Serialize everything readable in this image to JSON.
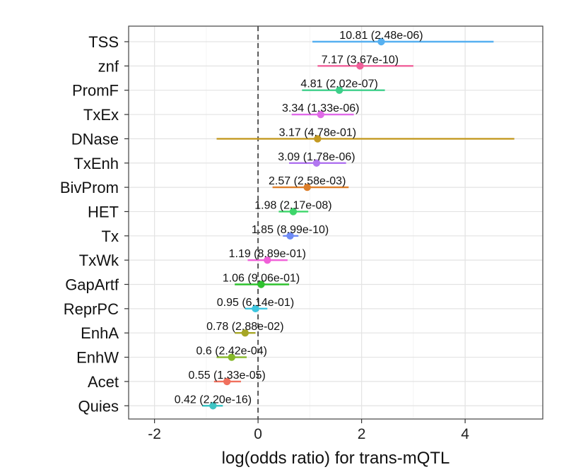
{
  "chart_data": {
    "type": "forest",
    "xlabel": "log(odds ratio) for trans-mQTL",
    "ylabel": "",
    "xlim": [
      -2.5,
      5.5
    ],
    "xticks": [
      -2,
      0,
      2,
      4
    ],
    "xtick_labels": [
      "-2",
      "0",
      "2",
      "4"
    ],
    "reference_line_x": 0,
    "grid": true,
    "rows": [
      {
        "category": "TSS",
        "estimate": 2.38,
        "lower": 1.05,
        "upper": 4.55,
        "label": "10.81 (2.48e-06)",
        "color": "#56b0f0"
      },
      {
        "category": "znf",
        "estimate": 1.97,
        "lower": 1.15,
        "upper": 3.0,
        "label": "7.17 (3.67e-10)",
        "color": "#f0609a"
      },
      {
        "category": "PromF",
        "estimate": 1.57,
        "lower": 0.85,
        "upper": 2.45,
        "label": "4.81 (2.02e-07)",
        "color": "#3dcf8a"
      },
      {
        "category": "TxEx",
        "estimate": 1.21,
        "lower": 0.65,
        "upper": 1.85,
        "label": "3.34 (1.33e-06)",
        "color": "#e06ae8"
      },
      {
        "category": "DNase",
        "estimate": 1.15,
        "lower": -0.8,
        "upper": 4.95,
        "label": "3.17 (4.78e-01)",
        "color": "#c49a22"
      },
      {
        "category": "TxEnh",
        "estimate": 1.13,
        "lower": 0.6,
        "upper": 1.7,
        "label": "3.09 (1.78e-06)",
        "color": "#b176f0"
      },
      {
        "category": "BivProm",
        "estimate": 0.95,
        "lower": 0.28,
        "upper": 1.75,
        "label": "2.57 (2.58e-03)",
        "color": "#dc7e2a"
      },
      {
        "category": "HET",
        "estimate": 0.68,
        "lower": 0.4,
        "upper": 0.97,
        "label": "1.98 (2.17e-08)",
        "color": "#3dd66a"
      },
      {
        "category": "Tx",
        "estimate": 0.62,
        "lower": 0.48,
        "upper": 0.78,
        "label": "1.85 (8.99e-10)",
        "color": "#6e8af5"
      },
      {
        "category": "TxWk",
        "estimate": 0.18,
        "lower": -0.2,
        "upper": 0.57,
        "label": "1.19 (8.89e-01)",
        "color": "#f060d8"
      },
      {
        "category": "GapArtf",
        "estimate": 0.06,
        "lower": -0.45,
        "upper": 0.6,
        "label": "1.06 (9.06e-01)",
        "color": "#2ec22e"
      },
      {
        "category": "ReprPC",
        "estimate": -0.05,
        "lower": -0.25,
        "upper": 0.18,
        "label": "0.95 (6.14e-01)",
        "color": "#3cc6e0"
      },
      {
        "category": "EnhA",
        "estimate": -0.25,
        "lower": -0.45,
        "upper": -0.05,
        "label": "0.78 (2.88e-02)",
        "color": "#a6a626"
      },
      {
        "category": "EnhW",
        "estimate": -0.51,
        "lower": -0.8,
        "upper": -0.22,
        "label": "0.6 (2.42e-04)",
        "color": "#86b82a"
      },
      {
        "category": "Acet",
        "estimate": -0.6,
        "lower": -0.85,
        "upper": -0.33,
        "label": "0.55 (1.33e-05)",
        "color": "#f0705e"
      },
      {
        "category": "Quies",
        "estimate": -0.87,
        "lower": -1.08,
        "upper": -0.68,
        "label": "0.42 (2.20e-16)",
        "color": "#3ec4c4"
      }
    ]
  }
}
